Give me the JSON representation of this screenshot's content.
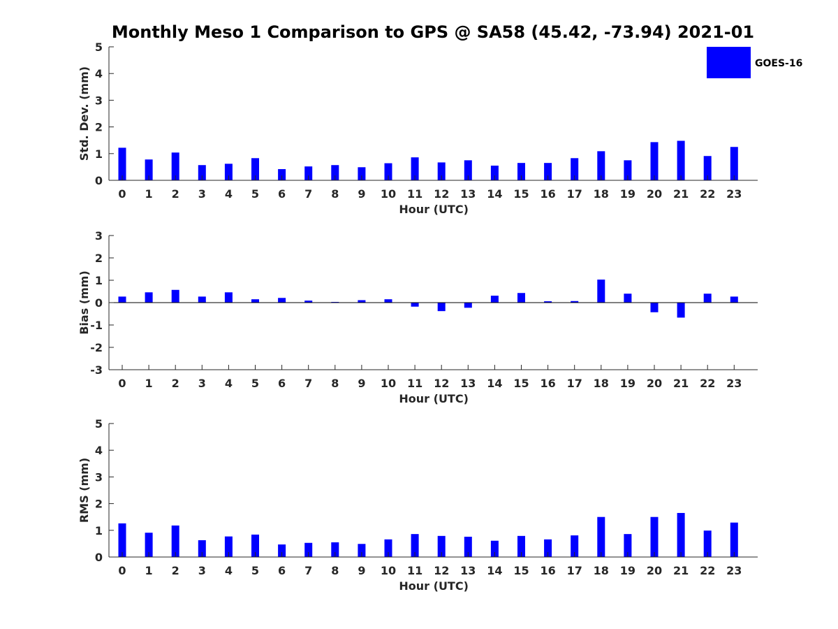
{
  "figure": {
    "title": "Monthly Meso 1 Comparison to GPS @ SA58 (45.42, -73.94) 2021-01"
  },
  "legend": {
    "label": "GOES-16",
    "color": "#0000ff"
  },
  "chart_data": [
    {
      "type": "bar",
      "panel": "std-dev",
      "title": "",
      "xlabel": "Hour (UTC)",
      "ylabel": "Std. Dev. (mm)",
      "categories": [
        0,
        1,
        2,
        3,
        4,
        5,
        6,
        7,
        8,
        9,
        10,
        11,
        12,
        13,
        14,
        15,
        16,
        17,
        18,
        19,
        20,
        21,
        22,
        23
      ],
      "series": [
        {
          "name": "GOES-16",
          "values": [
            1.22,
            0.78,
            1.04,
            0.57,
            0.62,
            0.83,
            0.42,
            0.52,
            0.57,
            0.49,
            0.64,
            0.86,
            0.67,
            0.75,
            0.55,
            0.65,
            0.65,
            0.83,
            1.09,
            0.75,
            1.43,
            1.48,
            0.91,
            1.25
          ]
        }
      ],
      "ylim": [
        0,
        5
      ],
      "yticks": [
        0,
        1,
        2,
        3,
        4,
        5
      ],
      "grid": false,
      "legend_position": "top-right"
    },
    {
      "type": "bar",
      "panel": "bias",
      "title": "",
      "xlabel": "Hour (UTC)",
      "ylabel": "Bias (mm)",
      "categories": [
        0,
        1,
        2,
        3,
        4,
        5,
        6,
        7,
        8,
        9,
        10,
        11,
        12,
        13,
        14,
        15,
        16,
        17,
        18,
        19,
        20,
        21,
        22,
        23
      ],
      "series": [
        {
          "name": "GOES-16",
          "values": [
            0.27,
            0.46,
            0.57,
            0.27,
            0.46,
            0.15,
            0.21,
            0.09,
            0.03,
            0.11,
            0.15,
            -0.18,
            -0.38,
            -0.23,
            0.31,
            0.43,
            0.06,
            0.07,
            1.03,
            0.4,
            -0.43,
            -0.67,
            0.4,
            0.27
          ]
        }
      ],
      "ylim": [
        -3,
        3
      ],
      "yticks": [
        -3,
        -2,
        -1,
        0,
        1,
        2,
        3
      ],
      "grid": false
    },
    {
      "type": "bar",
      "panel": "rms",
      "title": "",
      "xlabel": "Hour (UTC)",
      "ylabel": "RMS (mm)",
      "categories": [
        0,
        1,
        2,
        3,
        4,
        5,
        6,
        7,
        8,
        9,
        10,
        11,
        12,
        13,
        14,
        15,
        16,
        17,
        18,
        19,
        20,
        21,
        22,
        23
      ],
      "series": [
        {
          "name": "GOES-16",
          "values": [
            1.26,
            0.91,
            1.18,
            0.63,
            0.77,
            0.84,
            0.47,
            0.53,
            0.55,
            0.49,
            0.66,
            0.86,
            0.79,
            0.76,
            0.61,
            0.79,
            0.66,
            0.81,
            1.5,
            0.86,
            1.5,
            1.65,
            0.99,
            1.29
          ]
        }
      ],
      "ylim": [
        0,
        5
      ],
      "yticks": [
        0,
        1,
        2,
        3,
        4,
        5
      ],
      "grid": false
    }
  ]
}
